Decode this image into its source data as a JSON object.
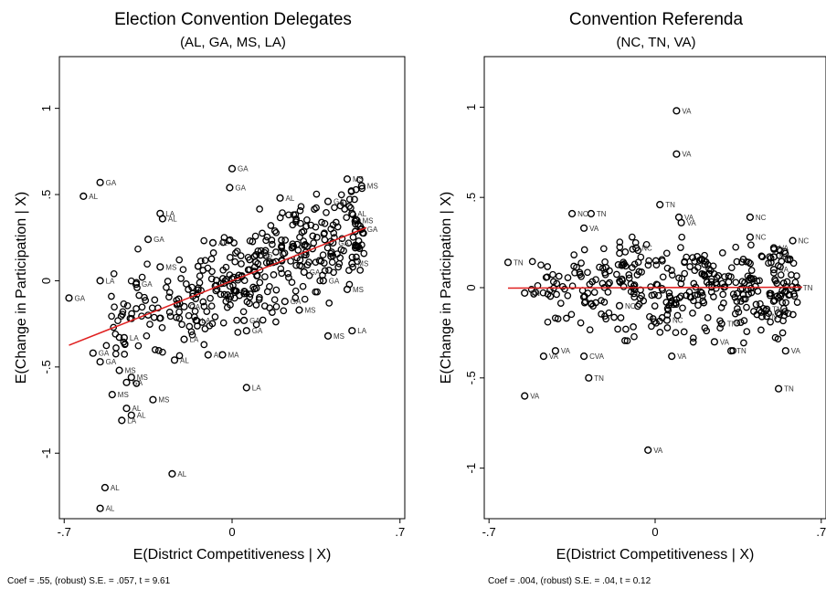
{
  "chart_data": [
    {
      "type": "scatter",
      "title": "Election Convention Delegates",
      "subtitle": "(AL, GA, MS, LA)",
      "xlabel": "E(District Competitiveness | X)",
      "ylabel": "E(Change in Participation | X)",
      "xticks": [
        -0.7,
        0,
        0.7
      ],
      "xtick_labels": [
        "-.7",
        "0",
        ".7"
      ],
      "yticks": [
        1,
        0.5,
        0,
        -0.5,
        -1
      ],
      "ytick_labels": [
        "1",
        ".5",
        "0",
        "-.5",
        "-1"
      ],
      "xlim": [
        -0.72,
        0.72
      ],
      "ylim": [
        -1.38,
        1.3
      ],
      "grid": false,
      "fit_line": {
        "slope": 0.55,
        "intercept": 0.0,
        "x_range": [
          -0.68,
          0.56
        ],
        "color": "#e02020"
      },
      "note": "Coef = .55, (robust) S.E. = .057, t = 9.61",
      "points": [
        {
          "x": -0.55,
          "y": 0.57,
          "label": "GA"
        },
        {
          "x": -0.62,
          "y": 0.49,
          "label": "AL"
        },
        {
          "x": -0.68,
          "y": -0.1,
          "label": "GA"
        },
        {
          "x": -0.55,
          "y": 0.0,
          "label": "LA"
        },
        {
          "x": -0.3,
          "y": 0.39,
          "label": "LA"
        },
        {
          "x": -0.29,
          "y": 0.36,
          "label": "AL"
        },
        {
          "x": 0.0,
          "y": 0.65,
          "label": "GA"
        },
        {
          "x": -0.01,
          "y": 0.54,
          "label": "GA"
        },
        {
          "x": 0.2,
          "y": 0.48,
          "label": "AL"
        },
        {
          "x": 0.48,
          "y": 0.59,
          "label": "MS"
        },
        {
          "x": 0.54,
          "y": 0.55,
          "label": "MS"
        },
        {
          "x": 0.4,
          "y": 0.46,
          "label": "GA"
        },
        {
          "x": 0.5,
          "y": 0.39,
          "label": "AL"
        },
        {
          "x": 0.52,
          "y": 0.35,
          "label": "MS"
        },
        {
          "x": 0.54,
          "y": 0.3,
          "label": "GA"
        },
        {
          "x": 0.5,
          "y": 0.1,
          "label": "MS"
        },
        {
          "x": 0.48,
          "y": -0.05,
          "label": "MS"
        },
        {
          "x": 0.5,
          "y": -0.29,
          "label": "LA"
        },
        {
          "x": 0.4,
          "y": -0.32,
          "label": "MS"
        },
        {
          "x": 0.28,
          "y": -0.17,
          "label": "MS"
        },
        {
          "x": -0.1,
          "y": -0.43,
          "label": "AL"
        },
        {
          "x": -0.04,
          "y": -0.43,
          "label": "MA"
        },
        {
          "x": 0.06,
          "y": -0.62,
          "label": "LA"
        },
        {
          "x": -0.24,
          "y": -0.46,
          "label": "AL"
        },
        {
          "x": -0.55,
          "y": -0.47,
          "label": "GA"
        },
        {
          "x": -0.58,
          "y": -0.42,
          "label": "GA"
        },
        {
          "x": -0.47,
          "y": -0.52,
          "label": "MS"
        },
        {
          "x": -0.42,
          "y": -0.56,
          "label": "MS"
        },
        {
          "x": -0.44,
          "y": -0.59,
          "label": "GA"
        },
        {
          "x": -0.33,
          "y": -0.69,
          "label": "MS"
        },
        {
          "x": -0.5,
          "y": -0.66,
          "label": "MS"
        },
        {
          "x": -0.44,
          "y": -0.74,
          "label": "AL"
        },
        {
          "x": -0.42,
          "y": -0.78,
          "label": "AL"
        },
        {
          "x": -0.46,
          "y": -0.81,
          "label": "LA"
        },
        {
          "x": -0.53,
          "y": -1.2,
          "label": "AL"
        },
        {
          "x": -0.25,
          "y": -1.12,
          "label": "AL"
        },
        {
          "x": -0.55,
          "y": -1.32,
          "label": "AL"
        },
        {
          "x": -0.3,
          "y": 0.08,
          "label": "MS"
        },
        {
          "x": -0.4,
          "y": -0.02,
          "label": "GA"
        },
        {
          "x": -0.2,
          "y": -0.34,
          "label": "LA"
        },
        {
          "x": 0.05,
          "y": -0.23,
          "label": "GA"
        },
        {
          "x": 0.06,
          "y": -0.29,
          "label": "GA"
        },
        {
          "x": -0.08,
          "y": 0.22,
          "label": "AL"
        },
        {
          "x": 0.1,
          "y": 0.15,
          "label": "MS"
        },
        {
          "x": 0.3,
          "y": 0.05,
          "label": "GA"
        },
        {
          "x": 0.38,
          "y": 0.0,
          "label": "GA"
        },
        {
          "x": 0.42,
          "y": 0.22,
          "label": "GA"
        },
        {
          "x": 0.22,
          "y": -0.12,
          "label": "GA"
        },
        {
          "x": -0.35,
          "y": 0.24,
          "label": "GA"
        },
        {
          "x": -0.2,
          "y": -0.15,
          "label": "GA"
        },
        {
          "x": -0.15,
          "y": -0.23,
          "label": "LA"
        },
        {
          "x": -0.45,
          "y": -0.33,
          "label": "LA"
        }
      ],
      "cloud": {
        "n": 380,
        "x_range": [
          -0.6,
          0.55
        ],
        "slope": 0.55,
        "sd": 0.14,
        "seed": 11
      }
    },
    {
      "type": "scatter",
      "title": "Convention Referenda",
      "subtitle": "(NC, TN, VA)",
      "xlabel": "E(District Competitiveness | X)",
      "ylabel": "E(Change in Participation | X)",
      "xticks": [
        -0.7,
        0,
        0.7
      ],
      "xtick_labels": [
        "-.7",
        "0",
        ".7"
      ],
      "yticks": [
        1,
        0.5,
        0,
        -0.5,
        -1
      ],
      "ytick_labels": [
        "1",
        ".5",
        "0",
        "-.5",
        "-1"
      ],
      "xlim": [
        -0.72,
        0.72
      ],
      "ylim": [
        -1.28,
        1.28
      ],
      "grid": false,
      "fit_line": {
        "slope": 0.004,
        "intercept": 0.0,
        "x_range": [
          -0.62,
          0.62
        ],
        "color": "#e02020"
      },
      "note": "Coef = .004, (robust) S.E. = .04, t = 0.12",
      "points": [
        {
          "x": 0.09,
          "y": 0.98,
          "label": "VA"
        },
        {
          "x": 0.09,
          "y": 0.74,
          "label": "VA"
        },
        {
          "x": 0.02,
          "y": 0.46,
          "label": "TN"
        },
        {
          "x": 0.1,
          "y": 0.39,
          "label": "VA"
        },
        {
          "x": 0.11,
          "y": 0.36,
          "label": "VA"
        },
        {
          "x": 0.4,
          "y": 0.39,
          "label": "NC"
        },
        {
          "x": -0.35,
          "y": 0.41,
          "label": "NC"
        },
        {
          "x": -0.27,
          "y": 0.41,
          "label": "TN"
        },
        {
          "x": -0.3,
          "y": 0.33,
          "label": "VA"
        },
        {
          "x": 0.4,
          "y": 0.28,
          "label": "NC"
        },
        {
          "x": 0.58,
          "y": 0.26,
          "label": "NC"
        },
        {
          "x": 0.5,
          "y": 0.22,
          "label": "VA"
        },
        {
          "x": 0.5,
          "y": 0.17,
          "label": "NC"
        },
        {
          "x": 0.5,
          "y": 0.1,
          "label": "VA"
        },
        {
          "x": -0.62,
          "y": 0.14,
          "label": "TN"
        },
        {
          "x": -0.55,
          "y": -0.03,
          "label": "TN"
        },
        {
          "x": 0.55,
          "y": -0.35,
          "label": "VA"
        },
        {
          "x": 0.52,
          "y": -0.56,
          "label": "TN"
        },
        {
          "x": 0.32,
          "y": -0.35,
          "label": "TN"
        },
        {
          "x": 0.25,
          "y": -0.3,
          "label": "VA"
        },
        {
          "x": 0.07,
          "y": -0.38,
          "label": "VA"
        },
        {
          "x": -0.28,
          "y": -0.5,
          "label": "TN"
        },
        {
          "x": -0.55,
          "y": -0.6,
          "label": "VA"
        },
        {
          "x": -0.47,
          "y": -0.38,
          "label": "VA"
        },
        {
          "x": -0.42,
          "y": -0.35,
          "label": "VA"
        },
        {
          "x": -0.3,
          "y": -0.38,
          "label": "CVA"
        },
        {
          "x": -0.03,
          "y": -0.9,
          "label": "VA"
        },
        {
          "x": 0.47,
          "y": -0.12,
          "label": "TN"
        },
        {
          "x": 0.45,
          "y": -0.16,
          "label": "TN"
        },
        {
          "x": 0.6,
          "y": 0.0,
          "label": "TN"
        },
        {
          "x": -0.08,
          "y": 0.22,
          "label": "NC"
        },
        {
          "x": -0.15,
          "y": -0.1,
          "label": "NC"
        },
        {
          "x": 0.05,
          "y": -0.18,
          "label": "NC"
        },
        {
          "x": 0.28,
          "y": -0.2,
          "label": "TN"
        }
      ],
      "cloud": {
        "n": 380,
        "x_range": [
          -0.58,
          0.6
        ],
        "slope": 0.004,
        "sd": 0.12,
        "seed": 29
      }
    }
  ]
}
